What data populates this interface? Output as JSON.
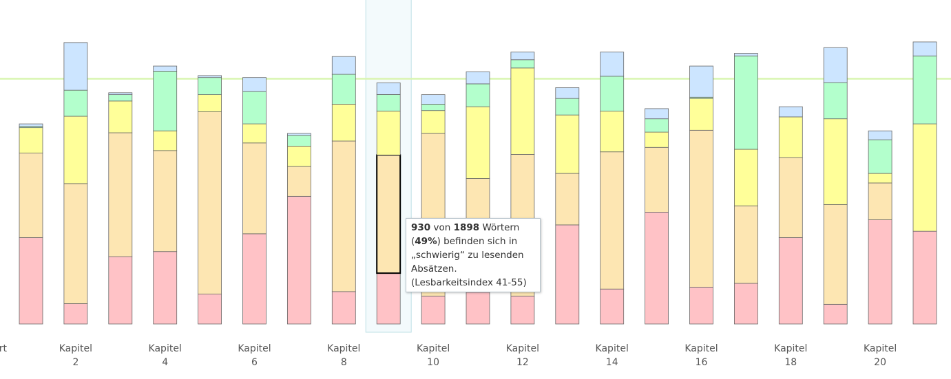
{
  "chart_data": {
    "type": "stacked_bar",
    "left_label": "rt",
    "categories": [
      null,
      "Kapitel 2",
      null,
      "Kapitel 4",
      null,
      "Kapitel 6",
      null,
      "Kapitel 8",
      null,
      "Kapitel 10",
      null,
      "Kapitel 12",
      null,
      "Kapitel 14",
      null,
      "Kapitel 16",
      null,
      "Kapitel 18",
      null,
      "Kapitel 20",
      null
    ],
    "series": [
      {
        "color": "#ffc2c6",
        "values": [
          680,
          160,
          530,
          570,
          235,
          710,
          1005,
          255,
          400,
          220,
          250,
          220,
          780,
          275,
          880,
          290,
          320,
          680,
          155,
          820,
          730
        ]
      },
      {
        "color": "#fde6b2",
        "values": [
          665,
          945,
          975,
          795,
          1435,
          715,
          235,
          1185,
          930,
          1280,
          895,
          1115,
          405,
          1080,
          510,
          1235,
          610,
          630,
          785,
          290,
          0
        ]
      },
      {
        "color": "#ffff99",
        "values": [
          200,
          530,
          250,
          155,
          135,
          150,
          160,
          290,
          346,
          180,
          565,
          680,
          460,
          320,
          120,
          250,
          445,
          320,
          675,
          75,
          845
        ]
      },
      {
        "color": "#b3ffcc",
        "values": [
          10,
          205,
          50,
          470,
          135,
          255,
          85,
          235,
          130,
          50,
          180,
          65,
          130,
          275,
          105,
          10,
          735,
          0,
          285,
          265,
          535
        ]
      },
      {
        "color": "#cce5ff",
        "values": [
          20,
          375,
          15,
          40,
          15,
          110,
          15,
          140,
          92,
          75,
          95,
          60,
          85,
          190,
          80,
          245,
          20,
          80,
          275,
          70,
          110
        ]
      }
    ],
    "ylim": [
      0,
      2550
    ],
    "reference_line": {
      "value": 1930,
      "color": "#d9f5b0"
    },
    "hover": {
      "category": 8,
      "series": 1,
      "label": "49%",
      "tooltip": {
        "count": "930",
        "t1": " von ",
        "total": "1898",
        "t2": " Wörtern (",
        "percent": "49%",
        "t3": ") befinden sich in „schwierig“ zu lesenden Absätzen. (Lesbarkeitsindex 41-55)"
      }
    }
  }
}
